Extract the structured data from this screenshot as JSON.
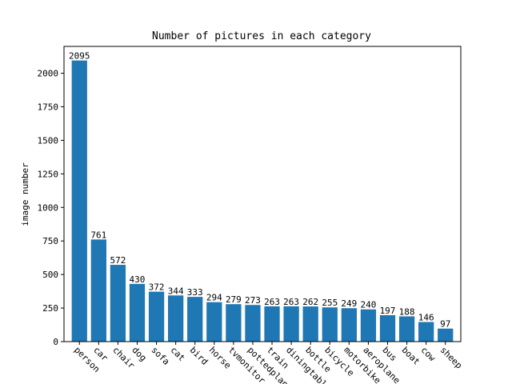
{
  "chart_data": {
    "type": "bar",
    "title": "Number of pictures in each category",
    "xlabel": "",
    "ylabel": "image number",
    "categories": [
      "person",
      "car",
      "chair",
      "dog",
      "sofa",
      "cat",
      "bird",
      "horse",
      "tvmonitor",
      "pottedplant",
      "train",
      "diningtable",
      "bottle",
      "bicycle",
      "motorbike",
      "aeroplane",
      "bus",
      "boat",
      "cow",
      "sheep"
    ],
    "values": [
      2095,
      761,
      572,
      430,
      372,
      344,
      333,
      294,
      279,
      273,
      263,
      263,
      262,
      255,
      249,
      240,
      197,
      188,
      146,
      97
    ],
    "data_labels": [
      "2095",
      "761",
      "572",
      "430",
      "372",
      "344",
      "333",
      "294",
      "279",
      "273",
      "263",
      "263",
      "262",
      "255",
      "249",
      "240",
      "197",
      "188",
      "146",
      "97"
    ],
    "ylim": [
      0,
      2200
    ],
    "yticks": [
      0,
      250,
      500,
      750,
      1000,
      1250,
      1500,
      1750,
      2000
    ],
    "ytick_labels": [
      "0",
      "250",
      "500",
      "750",
      "1000",
      "1250",
      "1500",
      "1750",
      "2000"
    ],
    "grid": false,
    "legend": "none",
    "bar_color": "#1f77b4"
  }
}
